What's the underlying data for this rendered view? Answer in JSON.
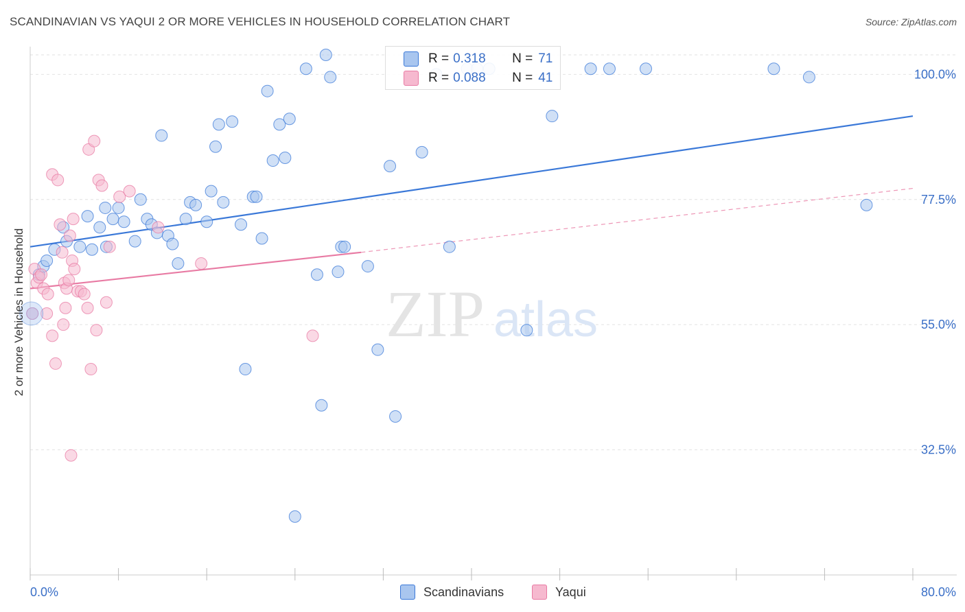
{
  "header": {
    "title": "SCANDINAVIAN VS YAQUI 2 OR MORE VEHICLES IN HOUSEHOLD CORRELATION CHART",
    "source": "Source: ZipAtlas.com"
  },
  "watermark": {
    "zip": "ZIP",
    "atlas": "atlas"
  },
  "stats": {
    "rows": [
      {
        "r_label": "R =",
        "r_value": "0.318",
        "n_label": "N =",
        "n_value": "71",
        "color": "#a9c6ef"
      },
      {
        "r_label": "R =",
        "r_value": "0.088",
        "n_label": "N =",
        "n_value": "41",
        "color": "#f6b9cf"
      }
    ]
  },
  "legend": {
    "items": [
      {
        "label": "Scandinavians",
        "color": "#a9c6ef"
      },
      {
        "label": "Yaqui",
        "color": "#f6b9cf"
      }
    ]
  },
  "chart_data": {
    "type": "scatter",
    "title": "SCANDINAVIAN VS YAQUI 2 OR MORE VEHICLES IN HOUSEHOLD CORRELATION CHART",
    "xlabel": "",
    "ylabel": "2 or more Vehicles in Household",
    "xlim": [
      0,
      80
    ],
    "ylim": [
      10,
      103.5
    ],
    "x_tick_labels": [
      "0.0%",
      "80.0%"
    ],
    "y_ticks": [
      32.5,
      55.0,
      77.5,
      100.0
    ],
    "y_tick_labels": [
      "32.5%",
      "55.0%",
      "77.5%",
      "100.0%"
    ],
    "grid": true,
    "series": [
      {
        "name": "Scandinavians",
        "color": "#3a78d8",
        "fill": "#a9c6ef",
        "trend": [
          [
            0,
            69.0
          ],
          [
            80,
            92.5
          ]
        ],
        "x": [
          0.2,
          0.8,
          1.2,
          1.5,
          2.2,
          3.0,
          3.3,
          4.5,
          5.2,
          5.6,
          6.3,
          6.8,
          6.9,
          7.5,
          8.0,
          8.5,
          9.5,
          10.0,
          10.6,
          11.0,
          11.5,
          11.9,
          12.5,
          12.9,
          13.4,
          14.1,
          14.5,
          15.0,
          16.0,
          16.4,
          16.8,
          17.1,
          17.5,
          18.3,
          19.1,
          19.5,
          20.2,
          20.5,
          21.0,
          21.5,
          22.0,
          22.6,
          23.1,
          23.5,
          24.0,
          25.0,
          26.0,
          26.4,
          26.8,
          27.2,
          27.9,
          28.2,
          28.5,
          30.6,
          31.5,
          32.6,
          33.1,
          35.5,
          36.8,
          38.0,
          39.6,
          40.5,
          41.6,
          45.0,
          47.3,
          50.8,
          52.5,
          55.8,
          67.4,
          70.6,
          75.8
        ],
        "y": [
          57.0,
          64.0,
          65.5,
          66.5,
          68.5,
          72.5,
          70.0,
          69.0,
          74.5,
          68.5,
          72.5,
          76.0,
          69.0,
          74.0,
          76.0,
          73.5,
          70.0,
          77.5,
          74.0,
          73.0,
          71.5,
          89.0,
          71.0,
          69.5,
          66.0,
          74.0,
          77.0,
          76.5,
          73.5,
          79.0,
          87.0,
          91.0,
          77.0,
          91.5,
          73.0,
          47.0,
          78.0,
          78.0,
          70.5,
          97.0,
          84.5,
          91.0,
          85.0,
          92.0,
          20.5,
          101.0,
          64.0,
          40.5,
          103.5,
          99.5,
          64.5,
          69.0,
          69.0,
          65.5,
          50.5,
          83.5,
          38.5,
          86.0,
          100.0,
          69.0,
          101.0,
          101.0,
          101.0,
          54.0,
          92.5,
          101.0,
          101.0,
          101.0,
          101.0,
          99.5,
          76.5
        ]
      },
      {
        "name": "Yaqui",
        "color": "#e87aa3",
        "fill": "#f6b9cf",
        "trend": [
          [
            0,
            61.5
          ],
          [
            30,
            68.0
          ]
        ],
        "trend_dashed": [
          [
            30,
            68.0
          ],
          [
            80,
            79.5
          ]
        ],
        "x": [
          0.2,
          0.4,
          0.6,
          0.8,
          1.0,
          1.2,
          1.5,
          1.6,
          2.0,
          2.0,
          2.3,
          2.5,
          2.7,
          2.9,
          3.0,
          3.1,
          3.2,
          3.3,
          3.5,
          3.6,
          3.7,
          3.8,
          3.9,
          4.0,
          4.3,
          4.6,
          4.9,
          5.2,
          5.3,
          5.5,
          5.8,
          6.0,
          6.2,
          6.5,
          6.9,
          7.2,
          8.1,
          9.0,
          11.6,
          15.5,
          25.6
        ],
        "y": [
          57.0,
          65.0,
          62.5,
          63.5,
          64.0,
          61.5,
          57.0,
          60.5,
          53.0,
          82.0,
          48.0,
          81.0,
          73.0,
          68.0,
          55.0,
          62.5,
          58.0,
          61.5,
          63.0,
          71.0,
          31.5,
          66.5,
          74.0,
          65.0,
          61.0,
          61.0,
          60.5,
          58.0,
          86.5,
          47.0,
          88.0,
          54.0,
          81.0,
          80.0,
          59.0,
          69.0,
          78.0,
          79.0,
          72.5,
          66.0,
          53.0
        ]
      }
    ]
  }
}
